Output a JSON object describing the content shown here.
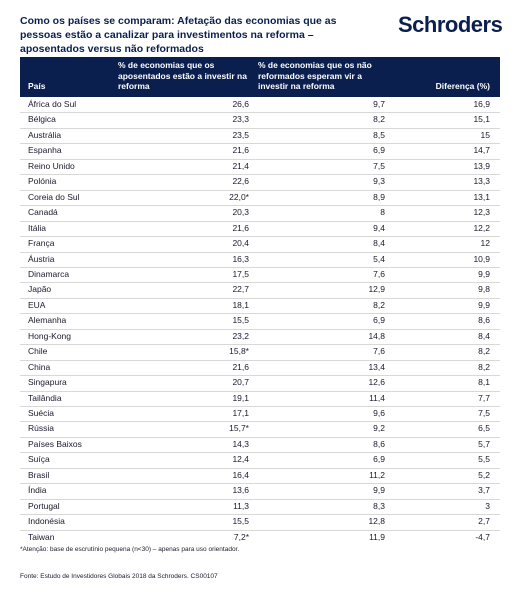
{
  "header": {
    "title": "Como os países se comparam: Afetação das economias que as pessoas estão a canalizar para investimentos na reforma – aposentados versus não reformados",
    "logo": "Schroders"
  },
  "table": {
    "columns": [
      "País",
      "% de economias que os aposentados estão a investir na reforma",
      "% de economias que os não reformados esperam vir a investir na reforma",
      "Diferença (%)"
    ],
    "rows": [
      [
        "África do Sul",
        "26,6",
        "9,7",
        "16,9"
      ],
      [
        "Bélgica",
        "23,3",
        "8,2",
        "15,1"
      ],
      [
        "Austrália",
        "23,5",
        "8,5",
        "15"
      ],
      [
        "Espanha",
        "21,6",
        "6,9",
        "14,7"
      ],
      [
        "Reino Unido",
        "21,4",
        "7,5",
        "13,9"
      ],
      [
        "Polónia",
        "22,6",
        "9,3",
        "13,3"
      ],
      [
        "Coreia do Sul",
        "22,0*",
        "8,9",
        "13,1"
      ],
      [
        "Canadá",
        "20,3",
        "8",
        "12,3"
      ],
      [
        "Itália",
        "21,6",
        "9,4",
        "12,2"
      ],
      [
        "França",
        "20,4",
        "8,4",
        "12"
      ],
      [
        "Áustria",
        "16,3",
        "5,4",
        "10,9"
      ],
      [
        "Dinamarca",
        "17,5",
        "7,6",
        "9,9"
      ],
      [
        "Japão",
        "22,7",
        "12,9",
        "9,8"
      ],
      [
        "EUA",
        "18,1",
        "8,2",
        "9,9"
      ],
      [
        "Alemanha",
        "15,5",
        "6,9",
        "8,6"
      ],
      [
        "Hong-Kong",
        "23,2",
        "14,8",
        "8,4"
      ],
      [
        "Chile",
        "15,8*",
        "7,6",
        "8,2"
      ],
      [
        "China",
        "21,6",
        "13,4",
        "8,2"
      ],
      [
        "Singapura",
        "20,7",
        "12,6",
        "8,1"
      ],
      [
        "Tailândia",
        "19,1",
        "11,4",
        "7,7"
      ],
      [
        "Suécia",
        "17,1",
        "9,6",
        "7,5"
      ],
      [
        "Rússia",
        "15,7*",
        "9,2",
        "6,5"
      ],
      [
        "Países Baixos",
        "14,3",
        "8,6",
        "5,7"
      ],
      [
        "Suíça",
        "12,4",
        "6,9",
        "5,5"
      ],
      [
        "Brasil",
        "16,4",
        "11,2",
        "5,2"
      ],
      [
        "Índia",
        "13,6",
        "9,9",
        "3,7"
      ],
      [
        "Portugal",
        "11,3",
        "8,3",
        "3"
      ],
      [
        "Indonésia",
        "15,5",
        "12,8",
        "2,7"
      ],
      [
        "Taiwan",
        "7,2*",
        "11,9",
        "-4,7"
      ]
    ]
  },
  "footer": {
    "note": "*Atenção: base de escrutínio pequena (n<30) – apenas para uso orientador.",
    "source": "Fonte: Estudo de Investidores Globais 2018 da Schroders. CS00107"
  }
}
